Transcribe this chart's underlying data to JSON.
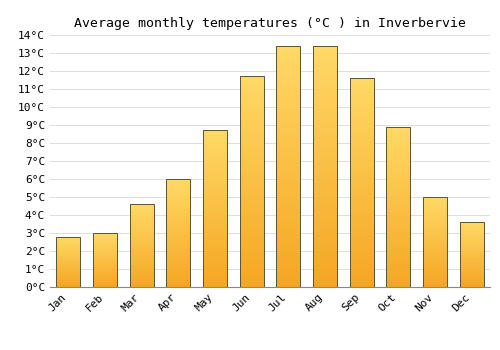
{
  "title": "Average monthly temperatures (°C ) in Inverbervie",
  "months": [
    "Jan",
    "Feb",
    "Mar",
    "Apr",
    "May",
    "Jun",
    "Jul",
    "Aug",
    "Sep",
    "Oct",
    "Nov",
    "Dec"
  ],
  "values": [
    2.8,
    3.0,
    4.6,
    6.0,
    8.7,
    11.7,
    13.4,
    13.4,
    11.6,
    8.9,
    5.0,
    3.6
  ],
  "bar_color_top": "#FFD966",
  "bar_color_bottom": "#F5A623",
  "bar_edge_color": "#555533",
  "background_color": "#FFFFFF",
  "grid_color": "#DDDDDD",
  "ylim": [
    0,
    14
  ],
  "yticks": [
    0,
    1,
    2,
    3,
    4,
    5,
    6,
    7,
    8,
    9,
    10,
    11,
    12,
    13,
    14
  ],
  "title_fontsize": 9.5,
  "tick_fontsize": 8,
  "font_family": "monospace",
  "bar_width": 0.65,
  "gradient_steps": 100
}
